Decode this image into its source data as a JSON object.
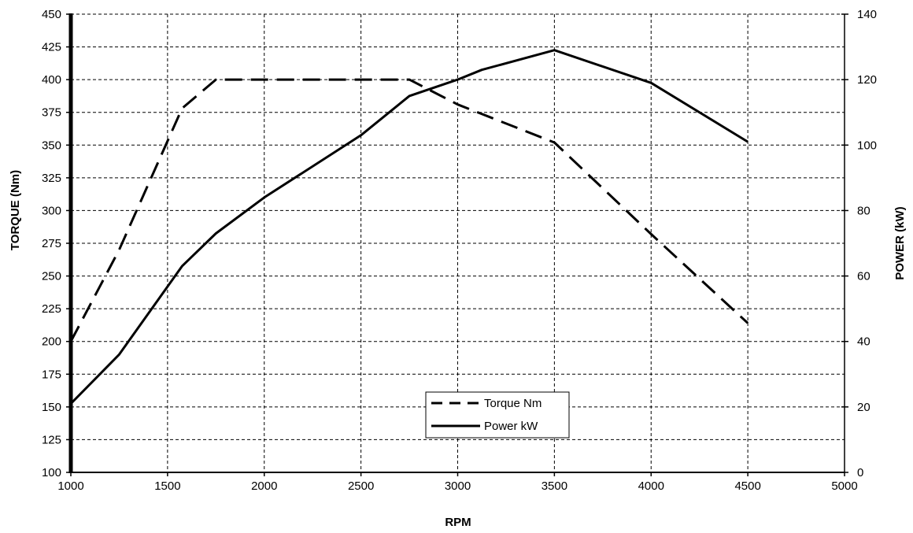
{
  "chart_data": {
    "type": "line",
    "xlabel": "RPM",
    "ylabel": "TORQUE (Nm)",
    "y2label": "POWER (kW)",
    "xlim": [
      1000,
      5000
    ],
    "ylim": [
      100,
      450
    ],
    "y2lim": [
      0,
      140
    ],
    "xticks": [
      1000,
      1500,
      2000,
      2500,
      3000,
      3500,
      4000,
      4500,
      5000
    ],
    "yticks": [
      100,
      125,
      150,
      175,
      200,
      225,
      250,
      275,
      300,
      325,
      350,
      375,
      400,
      425,
      450
    ],
    "y2ticks": [
      0,
      20,
      40,
      60,
      80,
      100,
      120,
      140
    ],
    "grid": true,
    "legend": "bottom-center",
    "series": [
      {
        "name": "Torque Nm",
        "axis": "left",
        "style": "dashed",
        "color": "#000000",
        "points": [
          [
            1000,
            200
          ],
          [
            1250,
            270
          ],
          [
            1575,
            378
          ],
          [
            1750,
            400
          ],
          [
            2750,
            400
          ],
          [
            3000,
            381
          ],
          [
            3500,
            352
          ],
          [
            4000,
            282
          ],
          [
            4500,
            214
          ]
        ]
      },
      {
        "name": "Power kW",
        "axis": "right",
        "style": "solid",
        "color": "#000000",
        "points": [
          [
            1000,
            21
          ],
          [
            1250,
            36
          ],
          [
            1575,
            63
          ],
          [
            1750,
            73
          ],
          [
            2000,
            84
          ],
          [
            2500,
            103
          ],
          [
            2750,
            115
          ],
          [
            3000,
            120
          ],
          [
            3125,
            123
          ],
          [
            3500,
            129
          ],
          [
            4000,
            119
          ],
          [
            4500,
            101
          ]
        ]
      }
    ]
  }
}
